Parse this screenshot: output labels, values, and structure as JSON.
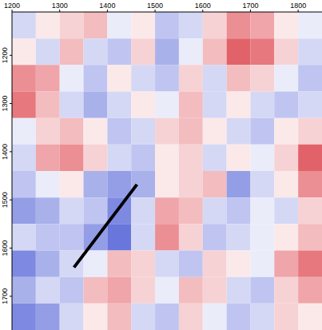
{
  "chart_data": {
    "type": "heatmap",
    "x_edges": [
      1200,
      1250,
      1300,
      1350,
      1400,
      1450,
      1500,
      1550,
      1600,
      1650,
      1700,
      1750,
      1800,
      1850
    ],
    "y_edges": [
      1110,
      1165,
      1220,
      1275,
      1330,
      1385,
      1440,
      1495,
      1550,
      1605,
      1660,
      1715,
      1770
    ],
    "cells": [
      [
        -0.2,
        0.1,
        0.2,
        0.3,
        -0.1,
        0.1,
        -0.3,
        -0.2,
        0.2,
        0.5,
        0.4,
        0.1,
        -0.1
      ],
      [
        0.1,
        -0.2,
        0.3,
        -0.2,
        -0.3,
        0.2,
        -0.4,
        -0.1,
        0.3,
        0.7,
        0.6,
        0.2,
        -0.2
      ],
      [
        0.5,
        0.4,
        -0.1,
        -0.3,
        0.1,
        -0.2,
        -0.3,
        0.2,
        -0.2,
        0.3,
        0.2,
        -0.1,
        -0.3
      ],
      [
        0.6,
        0.3,
        -0.2,
        -0.4,
        -0.2,
        0.1,
        -0.1,
        0.3,
        -0.2,
        0.1,
        -0.2,
        -0.3,
        -0.2
      ],
      [
        -0.1,
        0.2,
        0.3,
        0.1,
        -0.3,
        -0.2,
        0.2,
        0.3,
        0.1,
        -0.2,
        -0.3,
        0.1,
        0.2
      ],
      [
        -0.2,
        0.4,
        0.5,
        0.2,
        -0.2,
        -0.3,
        0.1,
        0.2,
        -0.2,
        0.1,
        -0.1,
        0.2,
        0.7
      ],
      [
        -0.3,
        -0.1,
        0.1,
        -0.4,
        -0.5,
        -0.4,
        0.1,
        0.2,
        0.3,
        -0.5,
        -0.2,
        0.1,
        0.5
      ],
      [
        -0.5,
        -0.4,
        -0.2,
        -0.3,
        -0.6,
        -0.2,
        0.4,
        0.3,
        -0.2,
        -0.3,
        -0.1,
        -0.2,
        0.2
      ],
      [
        -0.2,
        -0.3,
        -0.3,
        -0.5,
        -0.7,
        -0.2,
        0.5,
        0.2,
        -0.3,
        -0.2,
        -0.1,
        0.1,
        0.3
      ],
      [
        -0.6,
        -0.4,
        -0.2,
        -0.1,
        0.3,
        0.2,
        -0.2,
        -0.3,
        0.2,
        0.1,
        -0.1,
        0.4,
        0.6
      ],
      [
        -0.4,
        -0.2,
        -0.3,
        0.3,
        0.4,
        0.2,
        -0.1,
        0.3,
        0.2,
        -0.2,
        -0.3,
        0.2,
        0.4
      ],
      [
        -0.6,
        -0.5,
        -0.2,
        0.1,
        0.3,
        -0.2,
        -0.3,
        0.2,
        -0.1,
        -0.3,
        -0.2,
        0.2,
        0.1
      ]
    ],
    "zlim": [
      -1,
      1
    ],
    "xlim": [
      1200,
      1850
    ],
    "ylim": [
      1110,
      1770
    ],
    "xticks": [
      1200,
      1300,
      1400,
      1500,
      1600,
      1700,
      1800
    ],
    "yticks": [
      1200,
      1300,
      1400,
      1500,
      1600,
      1700
    ],
    "line": {
      "x": [
        1330,
        1462
      ],
      "y": [
        1640,
        1468
      ],
      "color": "#000000"
    }
  }
}
